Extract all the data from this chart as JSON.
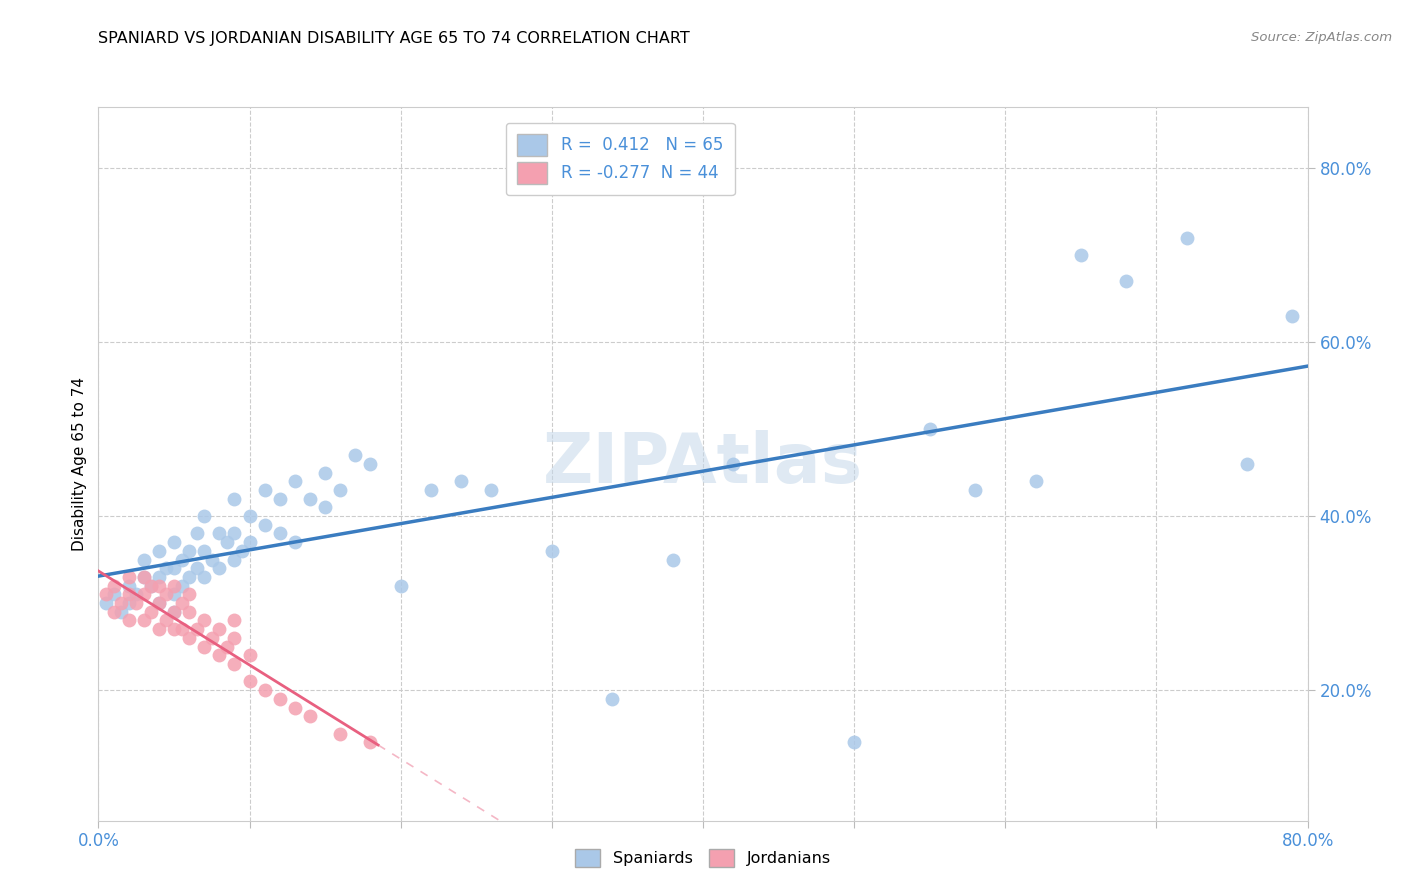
{
  "title": "SPANIARD VS JORDANIAN DISABILITY AGE 65 TO 74 CORRELATION CHART",
  "source": "Source: ZipAtlas.com",
  "ylabel": "Disability Age 65 to 74",
  "xlim": [
    0.0,
    0.8
  ],
  "ylim": [
    0.05,
    0.87
  ],
  "x_ticks": [
    0.0,
    0.1,
    0.2,
    0.3,
    0.4,
    0.5,
    0.6,
    0.7,
    0.8
  ],
  "y_ticks": [
    0.2,
    0.4,
    0.6,
    0.8
  ],
  "x_tick_labels": [
    "0.0%",
    "",
    "",
    "",
    "",
    "",
    "",
    "",
    "80.0%"
  ],
  "y_tick_labels_right": [
    "20.0%",
    "40.0%",
    "60.0%",
    "80.0%"
  ],
  "spaniard_R": 0.412,
  "spaniard_N": 65,
  "jordanian_R": -0.277,
  "jordanian_N": 44,
  "spaniard_color": "#aac8e8",
  "jordanian_color": "#f4a0b0",
  "trend_spaniard_color": "#3a7cc0",
  "trend_jordanian_color": "#e86080",
  "legend_spaniard": "Spaniards",
  "legend_jordanian": "Jordanians",
  "spaniard_x": [
    0.005,
    0.01,
    0.015,
    0.02,
    0.02,
    0.025,
    0.03,
    0.03,
    0.035,
    0.04,
    0.04,
    0.04,
    0.045,
    0.05,
    0.05,
    0.05,
    0.05,
    0.055,
    0.055,
    0.06,
    0.06,
    0.065,
    0.065,
    0.07,
    0.07,
    0.07,
    0.075,
    0.08,
    0.08,
    0.085,
    0.09,
    0.09,
    0.09,
    0.095,
    0.1,
    0.1,
    0.11,
    0.11,
    0.12,
    0.12,
    0.13,
    0.13,
    0.14,
    0.15,
    0.15,
    0.16,
    0.17,
    0.18,
    0.2,
    0.22,
    0.24,
    0.26,
    0.3,
    0.34,
    0.38,
    0.42,
    0.5,
    0.55,
    0.58,
    0.62,
    0.65,
    0.68,
    0.72,
    0.76,
    0.79
  ],
  "spaniard_y": [
    0.3,
    0.31,
    0.29,
    0.3,
    0.32,
    0.31,
    0.33,
    0.35,
    0.32,
    0.3,
    0.33,
    0.36,
    0.34,
    0.29,
    0.31,
    0.34,
    0.37,
    0.32,
    0.35,
    0.33,
    0.36,
    0.34,
    0.38,
    0.33,
    0.36,
    0.4,
    0.35,
    0.34,
    0.38,
    0.37,
    0.35,
    0.38,
    0.42,
    0.36,
    0.37,
    0.4,
    0.39,
    0.43,
    0.38,
    0.42,
    0.37,
    0.44,
    0.42,
    0.41,
    0.45,
    0.43,
    0.47,
    0.46,
    0.32,
    0.43,
    0.44,
    0.43,
    0.36,
    0.19,
    0.35,
    0.46,
    0.14,
    0.5,
    0.43,
    0.44,
    0.7,
    0.67,
    0.72,
    0.46,
    0.63
  ],
  "jordanian_x": [
    0.005,
    0.01,
    0.01,
    0.015,
    0.02,
    0.02,
    0.02,
    0.025,
    0.03,
    0.03,
    0.03,
    0.035,
    0.035,
    0.04,
    0.04,
    0.04,
    0.045,
    0.045,
    0.05,
    0.05,
    0.05,
    0.055,
    0.055,
    0.06,
    0.06,
    0.06,
    0.065,
    0.07,
    0.07,
    0.075,
    0.08,
    0.08,
    0.085,
    0.09,
    0.09,
    0.09,
    0.1,
    0.1,
    0.11,
    0.12,
    0.13,
    0.14,
    0.16,
    0.18
  ],
  "jordanian_y": [
    0.31,
    0.29,
    0.32,
    0.3,
    0.28,
    0.31,
    0.33,
    0.3,
    0.28,
    0.31,
    0.33,
    0.29,
    0.32,
    0.27,
    0.3,
    0.32,
    0.28,
    0.31,
    0.27,
    0.29,
    0.32,
    0.27,
    0.3,
    0.26,
    0.29,
    0.31,
    0.27,
    0.25,
    0.28,
    0.26,
    0.24,
    0.27,
    0.25,
    0.23,
    0.26,
    0.28,
    0.21,
    0.24,
    0.2,
    0.19,
    0.18,
    0.17,
    0.15,
    0.14
  ]
}
